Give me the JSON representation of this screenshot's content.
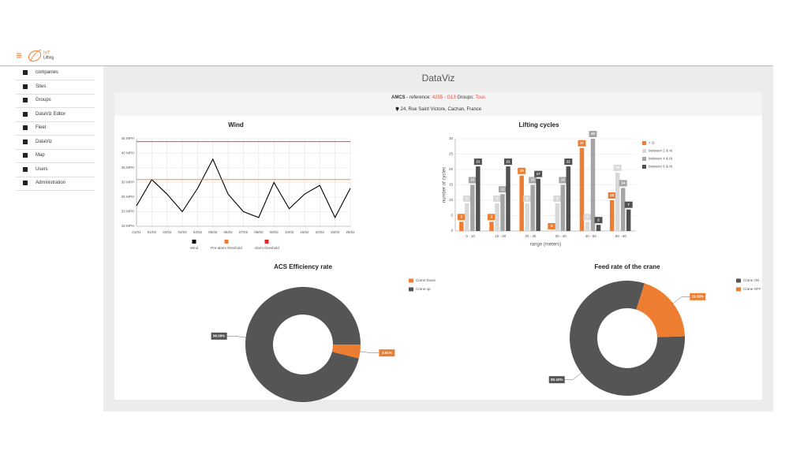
{
  "header": {
    "logo": "IoT",
    "logo_sub": "Lifting"
  },
  "sidebar": {
    "items": [
      "companies",
      "Sites",
      "Groups",
      "DataViz Editor",
      "Fleet",
      "DataViz",
      "Map",
      "Users",
      "Administration"
    ]
  },
  "page_title": "DataViz",
  "info": {
    "company": "AMCS",
    "reference_label": "- reference:",
    "reference": "4255 - G13",
    "groups_label": "Groups:",
    "groups": "Tous",
    "address": "24, Rue Saint Victore, Cachan, France"
  },
  "chart_data": [
    {
      "type": "line",
      "title": "Wind",
      "categories": [
        "01/01",
        "01/02",
        "02/02",
        "03/04",
        "04/02",
        "05/02",
        "06/02",
        "07/02",
        "08/02",
        "09/02",
        "10/02",
        "15/02",
        "20/02",
        "25/02",
        "29/02"
      ],
      "series": [
        {
          "name": "Wind",
          "color": "#000000",
          "values": [
            22,
            31,
            26,
            20,
            28,
            38,
            26,
            20,
            18,
            30,
            21,
            26,
            29,
            18,
            28
          ]
        },
        {
          "name": "Pre-alarm threshold",
          "color": "#ed7d31",
          "values": [
            31,
            31,
            31,
            31,
            31,
            31,
            31,
            31,
            31,
            31,
            31,
            31,
            31,
            31,
            31
          ]
        },
        {
          "name": "Alarm threshold",
          "color": "#e02424",
          "values": [
            44,
            44,
            44,
            44,
            44,
            44,
            44,
            44,
            44,
            44,
            44,
            44,
            44,
            44,
            44
          ]
        }
      ],
      "ylim": [
        15,
        45
      ],
      "yticks": [
        {
          "value": 15,
          "label": "15 MPH"
        },
        {
          "value": 20,
          "label": "20 MPH"
        },
        {
          "value": 25,
          "label": "25 MPH"
        },
        {
          "value": 30,
          "label": "30 MPH"
        },
        {
          "value": 35,
          "label": "35 MPH"
        },
        {
          "value": 40,
          "label": "40 MPH"
        },
        {
          "value": 45,
          "label": "45 MPH"
        }
      ],
      "grid": true,
      "legend": "bottom"
    },
    {
      "type": "bar",
      "title": "Lifting cycles",
      "categories": [
        "0 - 10",
        "10 - 20",
        "20 - 30",
        "30 - 40",
        "40 - 50",
        "50 - 60"
      ],
      "series": [
        {
          "name": "< 2t",
          "color": "#ed7d31",
          "values": [
            3,
            3,
            18,
            0,
            27,
            10
          ]
        },
        {
          "name": "between 2 & 4t",
          "color": "#d9d9d9",
          "values": [
            9,
            9,
            9,
            9,
            3,
            19
          ]
        },
        {
          "name": "between 4 & 6t",
          "color": "#a5a5a5",
          "values": [
            15,
            12,
            15,
            15,
            30,
            14
          ]
        },
        {
          "name": "between 6 & 8t",
          "color": "#505050",
          "values": [
            21,
            21,
            17,
            21,
            2,
            7
          ]
        }
      ],
      "ylim": [
        0,
        30
      ],
      "yticks": [
        0,
        5,
        10,
        15,
        20,
        25,
        30
      ],
      "xlabel": "range (meters)",
      "ylabel": "number of cycles",
      "grid": true,
      "legend": "top-right"
    },
    {
      "type": "donut",
      "title": "ACS Efficiency rate",
      "categories": [
        "Crane Down",
        "Crane up"
      ],
      "values": [
        3.91,
        96.09
      ],
      "value_labels": [
        "3.91%",
        "96.09%"
      ],
      "colors": [
        "#ed7d31",
        "#555555"
      ],
      "legend": "top-right"
    },
    {
      "type": "donut",
      "title": "Feed rate of the crane",
      "categories": [
        "Crane ON",
        "Crane OFF"
      ],
      "values": [
        80.42,
        19.58
      ],
      "value_labels": [
        "80.42%",
        "19.58%"
      ],
      "colors": [
        "#555555",
        "#ed7d31"
      ],
      "legend": "top-right"
    }
  ]
}
